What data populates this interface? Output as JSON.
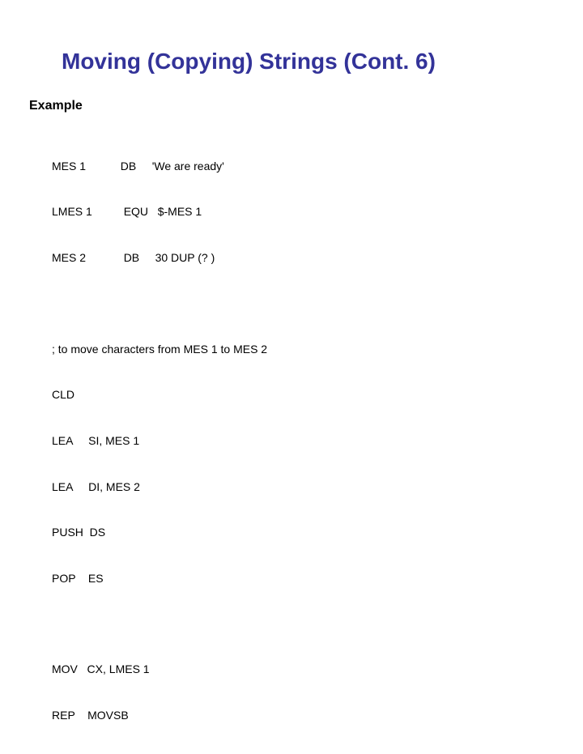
{
  "title": "Moving (Copying) Strings (Cont. 6)",
  "subhead": "Example",
  "defs": {
    "l1": "MES 1           DB     'We are ready'",
    "l2": "LMES 1          EQU   $-MES 1",
    "l3": "MES 2            DB     30 DUP (? )"
  },
  "move": {
    "l1": "; to move characters from MES 1 to MES 2",
    "l2": "CLD",
    "l3": "LEA     SI, MES 1",
    "l4": "LEA     DI, MES 2",
    "l5": "PUSH  DS",
    "l6": "POP    ES"
  },
  "tail": {
    "l1": "MOV   CX, LMES 1",
    "l2": "REP    MOVSB"
  },
  "colors": {
    "title": "#333399",
    "text": "#000000",
    "background": "#ffffff"
  },
  "font": {
    "family": "Verdana",
    "title_size_pt": 21,
    "body_size_pt": 11
  }
}
